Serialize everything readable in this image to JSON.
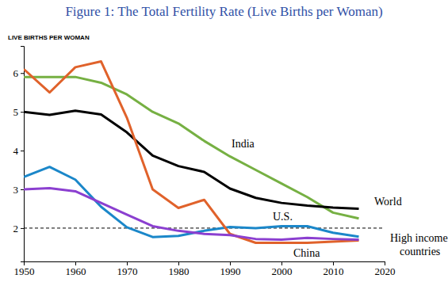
{
  "chart_data": {
    "type": "line",
    "title": "Figure 1: The Total Fertility Rate (Live Births per Woman)",
    "y_label": "LIVE BIRTHS PER WOMAN",
    "x": [
      1950,
      1955,
      1960,
      1965,
      1970,
      1975,
      1980,
      1985,
      1990,
      1995,
      2000,
      2005,
      2010,
      2015
    ],
    "series": [
      {
        "name": "India",
        "color": "#76b043",
        "values": [
          5.9,
          5.9,
          5.9,
          5.75,
          5.45,
          5.0,
          4.7,
          4.25,
          3.85,
          3.5,
          3.15,
          2.8,
          2.4,
          2.25
        ]
      },
      {
        "name": "World",
        "color": "#000000",
        "values": [
          5.0,
          4.92,
          5.03,
          4.93,
          4.47,
          3.87,
          3.6,
          3.45,
          3.02,
          2.78,
          2.65,
          2.58,
          2.53,
          2.5
        ]
      },
      {
        "name": "U.S.",
        "color": "#1b87c9",
        "values": [
          3.32,
          3.58,
          3.25,
          2.55,
          2.02,
          1.77,
          1.8,
          1.93,
          2.03,
          2.0,
          2.05,
          2.05,
          1.88,
          1.78
        ]
      },
      {
        "name": "China",
        "color": "#e0622b",
        "values": [
          6.1,
          5.5,
          6.15,
          6.3,
          4.85,
          3.0,
          2.52,
          2.73,
          1.85,
          1.62,
          1.62,
          1.62,
          1.65,
          1.68
        ]
      },
      {
        "name": "High income countries",
        "color": "#8b3fd0",
        "values": [
          3.0,
          3.03,
          2.95,
          2.65,
          2.35,
          2.05,
          1.93,
          1.85,
          1.82,
          1.72,
          1.7,
          1.75,
          1.72,
          1.7
        ]
      }
    ],
    "hline": 2,
    "line_style": "dashed",
    "xlim": [
      1950,
      2020
    ],
    "xticks": [
      1950,
      1960,
      1970,
      1980,
      1990,
      2000,
      2010,
      2020
    ],
    "ylim": [
      1.14,
      6.7
    ],
    "yticks": [
      2,
      3,
      4,
      5,
      6
    ],
    "grid": false
  }
}
